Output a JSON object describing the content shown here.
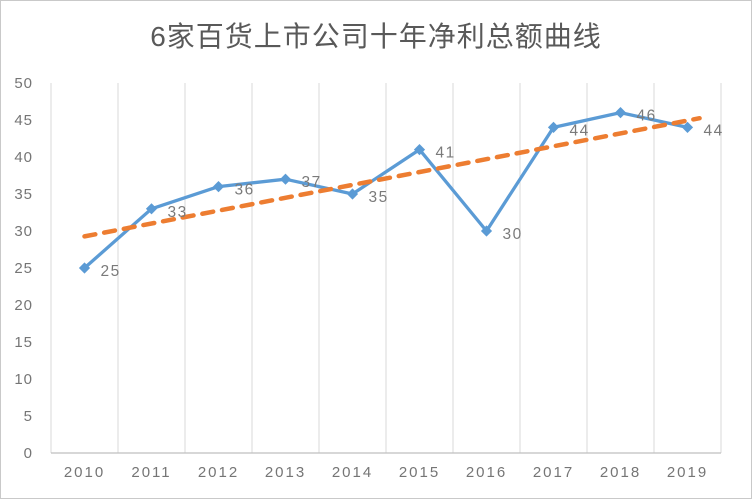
{
  "page": {
    "background": "#ffffff",
    "border_color": "#c9c9c9"
  },
  "chart_data": {
    "type": "line",
    "title": "6家百货上市公司十年净利总额曲线",
    "categories": [
      "2010",
      "2011",
      "2012",
      "2013",
      "2014",
      "2015",
      "2016",
      "2017",
      "2018",
      "2019"
    ],
    "series": [
      {
        "values": [
          25,
          33,
          36,
          37,
          35,
          41,
          30,
          44,
          46,
          44
        ],
        "color": "#5B9BD5",
        "marker": "diamond",
        "line_width": 3.3,
        "data_labels_shown": true
      }
    ],
    "trendline": {
      "fit": "linear",
      "style": "dashed",
      "color": "#ED7D31",
      "width": 4.5
    },
    "ylim": [
      0,
      50
    ],
    "ytick_step": 5,
    "yticks": [
      0,
      5,
      10,
      15,
      20,
      25,
      30,
      35,
      40,
      45,
      50
    ],
    "xlabel": "",
    "ylabel": "",
    "grid": "vertical-major-only",
    "legend": "none",
    "colors": {
      "grid": "#D9D9D9",
      "axis": "#BFBFBF",
      "tick_label": "#757575",
      "data_label": "#7a7a7a",
      "title": "#595959"
    }
  }
}
